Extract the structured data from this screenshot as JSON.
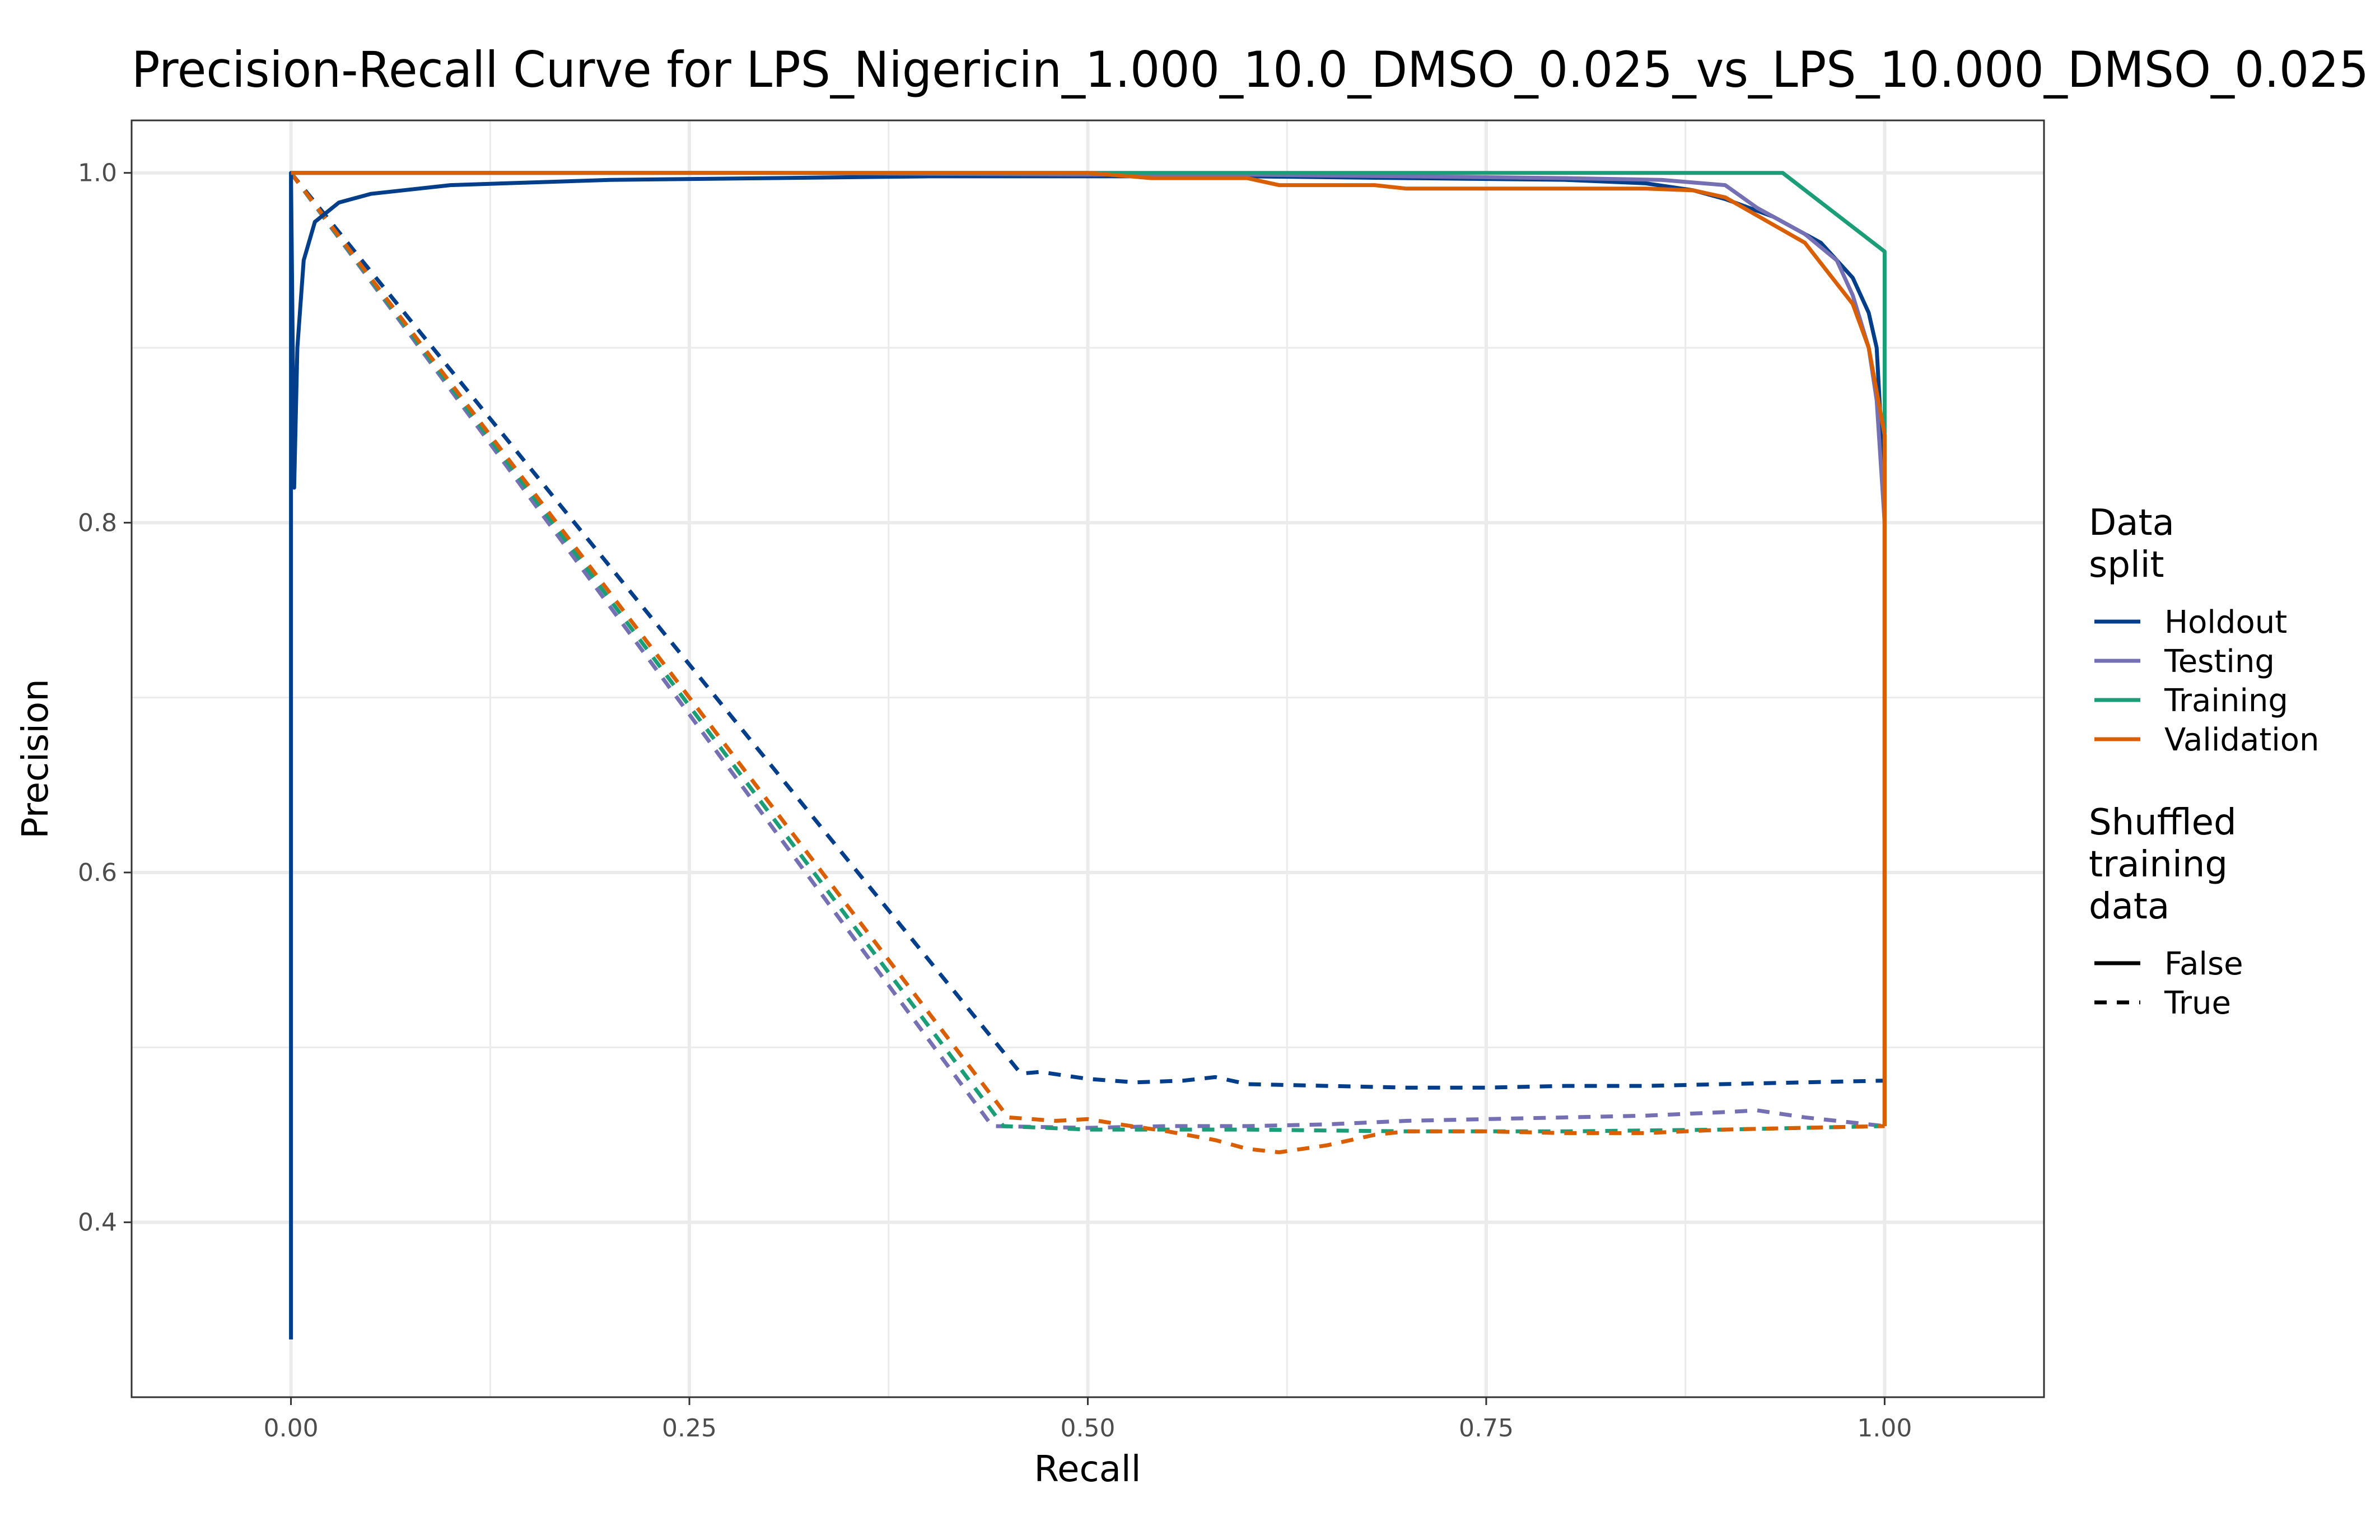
{
  "chart_data": {
    "type": "line",
    "title": "Precision-Recall Curve for LPS_Nigericin_1.000_10.0_DMSO_0.025_vs_LPS_10.000_DMSO_0.025",
    "xlabel": "Recall",
    "ylabel": "Precision",
    "xlim": [
      -0.1,
      1.1
    ],
    "ylim": [
      0.3,
      1.03
    ],
    "x_ticks": [
      0,
      0.25,
      0.5,
      0.75,
      1.0
    ],
    "x_tick_labels": [
      "0.00",
      "0.25",
      "0.50",
      "0.75",
      "1.00"
    ],
    "y_ticks": [
      0.4,
      0.6,
      0.8,
      1.0
    ],
    "y_tick_labels": [
      "0.4",
      "0.6",
      "0.8",
      "1.0"
    ],
    "grid": true,
    "legend_position": "right",
    "legends": [
      {
        "title": "Data\nsplit",
        "title_lines": [
          "Data",
          "split"
        ],
        "items": [
          {
            "label": "Holdout",
            "color": "#023e8a"
          },
          {
            "label": "Testing",
            "color": "#7570b3"
          },
          {
            "label": "Training",
            "color": "#1b9e77"
          },
          {
            "label": "Validation",
            "color": "#d95f02"
          }
        ]
      },
      {
        "title": "Shuffled\ntraining\ndata",
        "title_lines": [
          "Shuffled",
          "training",
          "data"
        ],
        "items": [
          {
            "label": "False",
            "linetype": "solid"
          },
          {
            "label": "True",
            "linetype": "dashed"
          }
        ]
      }
    ],
    "series": [
      {
        "name": "Holdout",
        "shuffled": "False",
        "color": "#023e8a",
        "dash": false,
        "points": [
          [
            0,
            0.333
          ],
          [
            0,
            1.0
          ],
          [
            0.002,
            0.82
          ],
          [
            0.004,
            0.9
          ],
          [
            0.008,
            0.95
          ],
          [
            0.015,
            0.972
          ],
          [
            0.03,
            0.983
          ],
          [
            0.05,
            0.988
          ],
          [
            0.1,
            0.993
          ],
          [
            0.2,
            0.996
          ],
          [
            0.3,
            0.997
          ],
          [
            0.4,
            0.998
          ],
          [
            0.5,
            0.998
          ],
          [
            0.6,
            0.998
          ],
          [
            0.7,
            0.997
          ],
          [
            0.8,
            0.996
          ],
          [
            0.85,
            0.994
          ],
          [
            0.88,
            0.99
          ],
          [
            0.9,
            0.985
          ],
          [
            0.93,
            0.975
          ],
          [
            0.96,
            0.96
          ],
          [
            0.98,
            0.94
          ],
          [
            0.99,
            0.92
          ],
          [
            0.995,
            0.9
          ],
          [
            0.998,
            0.85
          ],
          [
            1.0,
            0.8
          ],
          [
            1.0,
            0.455
          ]
        ]
      },
      {
        "name": "Testing",
        "shuffled": "False",
        "color": "#7570b3",
        "dash": false,
        "points": [
          [
            0,
            1.0
          ],
          [
            0.3,
            1.0
          ],
          [
            0.5,
            0.999
          ],
          [
            0.6,
            0.999
          ],
          [
            0.7,
            0.998
          ],
          [
            0.8,
            0.997
          ],
          [
            0.86,
            0.996
          ],
          [
            0.9,
            0.993
          ],
          [
            0.92,
            0.98
          ],
          [
            0.95,
            0.965
          ],
          [
            0.97,
            0.95
          ],
          [
            0.98,
            0.93
          ],
          [
            0.99,
            0.9
          ],
          [
            0.995,
            0.87
          ],
          [
            1.0,
            0.8
          ],
          [
            1.0,
            0.455
          ]
        ]
      },
      {
        "name": "Training",
        "shuffled": "False",
        "color": "#1b9e77",
        "dash": false,
        "points": [
          [
            0,
            1.0
          ],
          [
            0.5,
            1.0
          ],
          [
            0.7,
            1.0
          ],
          [
            0.85,
            1.0
          ],
          [
            0.936,
            1.0
          ],
          [
            1.0,
            0.955
          ],
          [
            1.0,
            0.455
          ]
        ]
      },
      {
        "name": "Validation",
        "shuffled": "False",
        "color": "#d95f02",
        "dash": false,
        "points": [
          [
            0,
            1.0
          ],
          [
            0.5,
            1.0
          ],
          [
            0.54,
            0.997
          ],
          [
            0.6,
            0.997
          ],
          [
            0.62,
            0.993
          ],
          [
            0.68,
            0.993
          ],
          [
            0.7,
            0.991
          ],
          [
            0.75,
            0.991
          ],
          [
            0.85,
            0.991
          ],
          [
            0.88,
            0.99
          ],
          [
            0.9,
            0.986
          ],
          [
            0.95,
            0.96
          ],
          [
            0.98,
            0.925
          ],
          [
            0.99,
            0.9
          ],
          [
            1.0,
            0.85
          ],
          [
            1.0,
            0.455
          ]
        ]
      },
      {
        "name": "Holdout",
        "shuffled": "True",
        "color": "#023e8a",
        "dash": true,
        "points": [
          [
            0,
            1.0
          ],
          [
            0.458,
            0.485
          ],
          [
            0.47,
            0.486
          ],
          [
            0.5,
            0.482
          ],
          [
            0.53,
            0.48
          ],
          [
            0.56,
            0.481
          ],
          [
            0.58,
            0.483
          ],
          [
            0.6,
            0.479
          ],
          [
            0.65,
            0.478
          ],
          [
            0.7,
            0.477
          ],
          [
            0.75,
            0.477
          ],
          [
            0.8,
            0.478
          ],
          [
            0.85,
            0.478
          ],
          [
            0.9,
            0.479
          ],
          [
            0.95,
            0.48
          ],
          [
            1.0,
            0.481
          ]
        ]
      },
      {
        "name": "Testing",
        "shuffled": "True",
        "color": "#7570b3",
        "dash": true,
        "points": [
          [
            0,
            1.0
          ],
          [
            0.44,
            0.455
          ],
          [
            0.5,
            0.454
          ],
          [
            0.55,
            0.455
          ],
          [
            0.6,
            0.455
          ],
          [
            0.65,
            0.456
          ],
          [
            0.7,
            0.458
          ],
          [
            0.75,
            0.459
          ],
          [
            0.8,
            0.46
          ],
          [
            0.85,
            0.461
          ],
          [
            0.9,
            0.463
          ],
          [
            0.92,
            0.464
          ],
          [
            0.95,
            0.46
          ],
          [
            1.0,
            0.455
          ]
        ]
      },
      {
        "name": "Training",
        "shuffled": "True",
        "color": "#1b9e77",
        "dash": true,
        "points": [
          [
            0,
            1.0
          ],
          [
            0.447,
            0.455
          ],
          [
            0.5,
            0.453
          ],
          [
            0.6,
            0.453
          ],
          [
            0.7,
            0.452
          ],
          [
            0.8,
            0.452
          ],
          [
            0.9,
            0.453
          ],
          [
            1.0,
            0.455
          ]
        ]
      },
      {
        "name": "Validation",
        "shuffled": "True",
        "color": "#d95f02",
        "dash": true,
        "points": [
          [
            0,
            1.0
          ],
          [
            0.45,
            0.46
          ],
          [
            0.48,
            0.458
          ],
          [
            0.5,
            0.459
          ],
          [
            0.52,
            0.456
          ],
          [
            0.55,
            0.452
          ],
          [
            0.58,
            0.447
          ],
          [
            0.6,
            0.442
          ],
          [
            0.62,
            0.44
          ],
          [
            0.65,
            0.444
          ],
          [
            0.68,
            0.45
          ],
          [
            0.7,
            0.452
          ],
          [
            0.75,
            0.452
          ],
          [
            0.8,
            0.451
          ],
          [
            0.85,
            0.451
          ],
          [
            0.9,
            0.453
          ],
          [
            0.95,
            0.454
          ],
          [
            1.0,
            0.455
          ]
        ]
      }
    ]
  }
}
